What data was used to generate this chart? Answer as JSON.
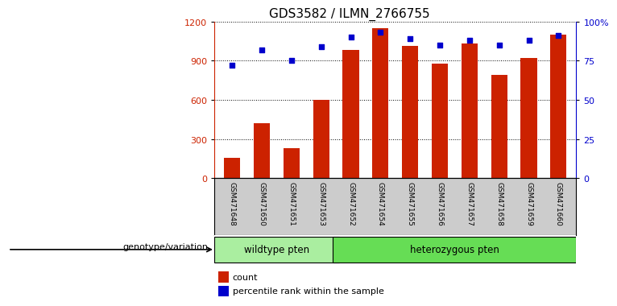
{
  "title": "GDS3582 / ILMN_2766755",
  "categories": [
    "GSM471648",
    "GSM471650",
    "GSM471651",
    "GSM471653",
    "GSM471652",
    "GSM471654",
    "GSM471655",
    "GSM471656",
    "GSM471657",
    "GSM471658",
    "GSM471659",
    "GSM471660"
  ],
  "count_values": [
    155,
    420,
    230,
    600,
    980,
    1150,
    1010,
    880,
    1030,
    790,
    920,
    1100
  ],
  "percentile_values": [
    72,
    82,
    75,
    84,
    90,
    93,
    89,
    85,
    88,
    85,
    88,
    91
  ],
  "bar_color": "#cc2200",
  "dot_color": "#0000cc",
  "ylim_left": [
    0,
    1200
  ],
  "ylim_right": [
    0,
    100
  ],
  "yticks_left": [
    0,
    300,
    600,
    900,
    1200
  ],
  "yticks_right": [
    0,
    25,
    50,
    75,
    100
  ],
  "ytick_labels_right": [
    "0",
    "25",
    "50",
    "75",
    "100%"
  ],
  "wildtype_count": 4,
  "heterozygous_count": 8,
  "wildtype_label": "wildtype pten",
  "heterozygous_label": "heterozygous pten",
  "genotype_label": "genotype/variation",
  "legend_count": "count",
  "legend_percentile": "percentile rank within the sample",
  "wildtype_color": "#aaeea0",
  "heterozygous_color": "#66dd55",
  "bg_color": "#cccccc",
  "plot_bg": "#ffffff",
  "title_fontsize": 11,
  "tick_fontsize": 8,
  "bar_width": 0.55
}
